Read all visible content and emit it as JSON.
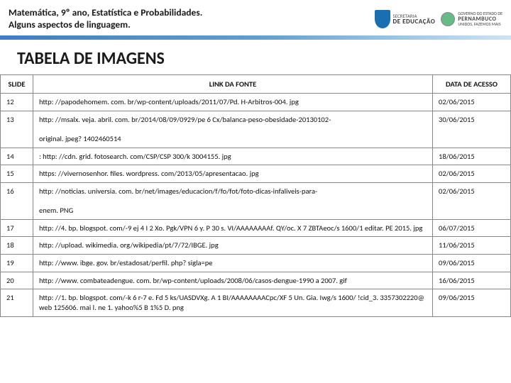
{
  "header": {
    "line1": "Matemática, 9º ano, Estatística e Probabilidades.",
    "line2": "Alguns aspectos de linguagem.",
    "logo_sec_small": "SECRETARIA",
    "logo_sec_big": "DE EDUCAÇÃO",
    "logo_pe_small": "GOVERNO DO ESTADO DE",
    "logo_pe_big": "PERNAMBUCO",
    "logo_pe_tag": "UNIDOS, FAZEMOS MAIS"
  },
  "page_title": "TABELA DE IMAGENS",
  "table": {
    "headers": {
      "slide": "SLIDE",
      "link": "LINK DA FONTE",
      "date": "DATA DE ACESSO"
    },
    "rows": [
      {
        "slide": "12",
        "link": "http: //papodehomem. com. br/wp-content/uploads/2011/07/Pd. H-Arbitros-004. jpg",
        "date": "02/06/2015"
      },
      {
        "slide": "13",
        "link": "http: //msalx. veja. abril. com. br/2014/08/09/0929/pe 6 Cx/balanca-peso-obesidade-20130102-\noriginal. jpeg? 1402460514",
        "date": "30/06/2015"
      },
      {
        "slide": "14",
        "link": ": http: //cdn. grid. fotosearch. com/CSP/CSP 300/k 3004155. jpg",
        "date": "18/06/2015"
      },
      {
        "slide": "15",
        "link": "https: //vivernosenhor. files. wordpress. com/2013/05/apresentacao. jpg",
        "date": "02/06/2015"
      },
      {
        "slide": "16",
        "link": "http: //noticias. universia. com. br/net/images/educacion/f/fo/fot/foto-dicas-infaliveis-para-\nenem. PNG",
        "date": "02/06/2015"
      },
      {
        "slide": "17",
        "link": "http: //4. bp. blogspot. com/-9 ej 4 I 2 Xo. Pgk/VPN 6 y. P 30 s. VI/AAAAAAAAf. QY/oc. X 7 ZBTAeoc/s 1600/1 editar. PE 2015. jpg",
        "date": "06/07/2015"
      },
      {
        "slide": "18",
        "link": "http: //upload. wikimedia. org/wikipedia/pt/7/72/IBGE. jpg",
        "date": "11/06/2015"
      },
      {
        "slide": "19",
        "link": "http: //www. ibge. gov. br/estadosat/perfil. php? sigla=pe",
        "date": "09/06/2015"
      },
      {
        "slide": "20",
        "link": "http: //www. combateadengue. com. br/wp-content/uploads/2008/06/casos-dengue-1990 a 2007. gif",
        "date": "16/06/2015"
      },
      {
        "slide": "21",
        "link": "http: //1. bp. blogspot. com/-k 6 r-7 e. Fd 5 ks/UASDVXg. A 1 BI/AAAAAAAACpc/XF 5 Un. Gia. Iwg/s 1600/ !cid_3. 3357302220@web 125606. mai l. ne 1. yahoo%5 B 1%5 D. png",
        "date": "09/06/2015"
      }
    ]
  },
  "colors": {
    "bar_start": "#3b7fc4",
    "bar_end": "#cde4f5",
    "border": "#888888",
    "text": "#111111"
  }
}
